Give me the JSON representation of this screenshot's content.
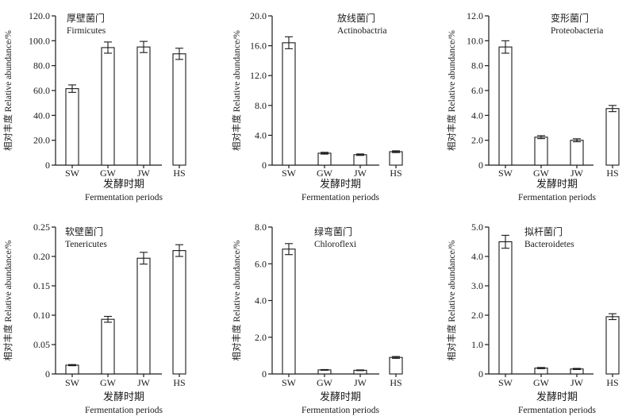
{
  "chart_data": [
    {
      "type": "bar",
      "title": "厚壁菌门",
      "subtitle": "Firmicutes",
      "categories": [
        "SW",
        "GW",
        "JW",
        "HS"
      ],
      "values": [
        61.5,
        94.5,
        95.0,
        89.5
      ],
      "errors": [
        3.0,
        4.5,
        4.5,
        4.5
      ],
      "ylim": [
        0,
        120
      ],
      "yticks": [
        "0",
        "20.0",
        "40.0",
        "60.0",
        "80.0",
        "100.0",
        "120.0"
      ],
      "ytick_values": [
        0,
        20,
        40,
        60,
        80,
        100,
        120
      ],
      "ylabel": "相对丰度 Relative abundance/%",
      "xlabel": "发酵时期",
      "xlabel_en": "Fermentation periods"
    },
    {
      "type": "bar",
      "title": "放线菌门",
      "subtitle": "Actinobactria",
      "categories": [
        "SW",
        "GW",
        "JW",
        "HS"
      ],
      "values": [
        16.4,
        1.6,
        1.4,
        1.8
      ],
      "errors": [
        0.8,
        0.12,
        0.1,
        0.12
      ],
      "ylim": [
        0,
        20
      ],
      "yticks": [
        "0",
        "4.0",
        "8.0",
        "12.0",
        "16.0",
        "20.0"
      ],
      "ytick_values": [
        0,
        4,
        8,
        12,
        16,
        20
      ],
      "ylabel": "相对丰度 Relative abundance/%",
      "xlabel": "发酵时期",
      "xlabel_en": "Fermentation periods"
    },
    {
      "type": "bar",
      "title": "变形菌门",
      "subtitle": "Proteobacteria",
      "categories": [
        "SW",
        "GW",
        "JW",
        "HS"
      ],
      "values": [
        9.5,
        2.25,
        2.0,
        4.55
      ],
      "errors": [
        0.5,
        0.12,
        0.12,
        0.25
      ],
      "ylim": [
        0,
        12
      ],
      "yticks": [
        "0",
        "2.0",
        "4.0",
        "6.0",
        "8.0",
        "10.0",
        "12.0"
      ],
      "ytick_values": [
        0,
        2,
        4,
        6,
        8,
        10,
        12
      ],
      "ylabel": "相对丰度 Relative abundance/%",
      "xlabel": "发酵时期",
      "xlabel_en": "Fermentation periods"
    },
    {
      "type": "bar",
      "title": "软壁菌门",
      "subtitle": "Tenericutes",
      "categories": [
        "SW",
        "GW",
        "JW",
        "HS"
      ],
      "values": [
        0.015,
        0.093,
        0.197,
        0.21
      ],
      "errors": [
        0.001,
        0.005,
        0.01,
        0.01
      ],
      "ylim": [
        0,
        0.25
      ],
      "yticks": [
        "0",
        "0.05",
        "0.10",
        "0.15",
        "0.20",
        "0.25"
      ],
      "ytick_values": [
        0,
        0.05,
        0.1,
        0.15,
        0.2,
        0.25
      ],
      "ylabel": "相对丰度 Relative abundance/%",
      "xlabel": "发酵时期",
      "xlabel_en": "Fermentation periods"
    },
    {
      "type": "bar",
      "title": "绿弯菌门",
      "subtitle": "Chloroflexi",
      "categories": [
        "SW",
        "GW",
        "JW",
        "HS"
      ],
      "values": [
        6.8,
        0.22,
        0.2,
        0.9
      ],
      "errors": [
        0.3,
        0.02,
        0.02,
        0.05
      ],
      "ylim": [
        0,
        8
      ],
      "yticks": [
        "0",
        "2.0",
        "4.0",
        "6.0",
        "8.0"
      ],
      "ytick_values": [
        0,
        2,
        4,
        6,
        8
      ],
      "ylabel": "相对丰度 Relative abundance/%",
      "xlabel": "发酵时期",
      "xlabel_en": "Fermentation periods"
    },
    {
      "type": "bar",
      "title": "拟杆菌门",
      "subtitle": "Bacteroidetes",
      "categories": [
        "SW",
        "GW",
        "JW",
        "HS"
      ],
      "values": [
        4.5,
        0.2,
        0.17,
        1.95
      ],
      "errors": [
        0.22,
        0.02,
        0.02,
        0.1
      ],
      "ylim": [
        0,
        5
      ],
      "yticks": [
        "0",
        "1.0",
        "2.0",
        "3.0",
        "4.0",
        "5.0"
      ],
      "ytick_values": [
        0,
        1,
        2,
        3,
        4,
        5
      ],
      "ylabel": "相对丰度 Relative abundance/%",
      "xlabel": "发酵时期",
      "xlabel_en": "Fermentation periods"
    }
  ]
}
